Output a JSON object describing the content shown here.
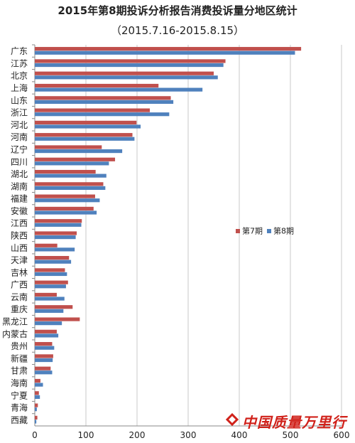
{
  "chart_data": {
    "type": "bar",
    "orientation": "horizontal",
    "title": "2015年第8期投诉分析报告消费投诉量分地区统计",
    "subtitle": "（2015.7.16-2015.8.15）",
    "categories": [
      "广东",
      "江苏",
      "北京",
      "上海",
      "山东",
      "浙江",
      "河北",
      "河南",
      "辽宁",
      "四川",
      "湖北",
      "湖南",
      "福建",
      "安徽",
      "江西",
      "陕西",
      "山西",
      "天津",
      "吉林",
      "广西",
      "云南",
      "重庆",
      "黑龙江",
      "内蒙古",
      "贵州",
      "新疆",
      "甘肃",
      "海南",
      "宁夏",
      "青海",
      "西藏"
    ],
    "series": [
      {
        "name": "第7期",
        "color": "#c0504d",
        "values": [
          521,
          373,
          350,
          242,
          266,
          225,
          199,
          191,
          131,
          157,
          119,
          134,
          118,
          115,
          92,
          82,
          44,
          67,
          59,
          65,
          43,
          74,
          88,
          43,
          34,
          36,
          31,
          11,
          8,
          6,
          5
        ]
      },
      {
        "name": "第8期",
        "color": "#4f81bd",
        "values": [
          509,
          369,
          358,
          328,
          271,
          263,
          207,
          195,
          171,
          145,
          140,
          138,
          127,
          121,
          91,
          80,
          78,
          71,
          63,
          61,
          58,
          56,
          53,
          46,
          38,
          35,
          34,
          16,
          10,
          4,
          3
        ]
      }
    ],
    "xlim": [
      0,
      600
    ],
    "xticks": [
      0,
      100,
      200,
      300,
      400,
      500,
      600
    ],
    "grid": "vertical",
    "legend": "right-middle"
  },
  "watermark": "中国质量万里行"
}
